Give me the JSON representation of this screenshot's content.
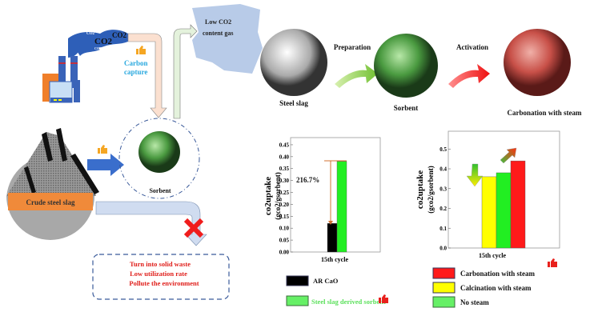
{
  "top_left": {
    "co2_labels": [
      "CO2",
      "CO2",
      "CO2",
      "CO2"
    ],
    "carbon_capture": [
      "Carbon",
      "capture"
    ],
    "low_co2_gas": [
      "Low CO2",
      "content gas"
    ]
  },
  "process": {
    "steel_slag": "Steel slag",
    "preparation": "Preparation",
    "sorbent": "Sorbent",
    "activation": "Activation",
    "carbonation": "Carbonation with steam"
  },
  "left": {
    "crude_steel_slag": "Crude steel slag",
    "sorbent": "Sorbent",
    "drawbacks": [
      "Turn into solid waste",
      "Low utilization rate",
      "Pollute the environment"
    ]
  },
  "colors": {
    "ar_cao": "#000000",
    "sorbent": "#22ee22",
    "carbonation": "#ff1a1a",
    "calcination": "#ffff00",
    "no_steam": "#22ee22",
    "carbon_capture_text": "#2aa9df",
    "drawback_text": "#e0201c"
  },
  "chart_data": [
    {
      "type": "bar",
      "ylabel": [
        "co2uptake",
        "(gco2/gsorbent)"
      ],
      "xlabel": "15th cycle",
      "ylim": [
        0,
        0.48
      ],
      "yticks": [
        "0.00",
        "0.05",
        "0.10",
        "0.15",
        "0.20",
        "0.25",
        "0.30",
        "0.35",
        "0.40",
        "0.45"
      ],
      "categories": [
        "15th cycle"
      ],
      "series": [
        {
          "name": "AR CaO",
          "values": [
            0.12
          ],
          "color": "#000000"
        },
        {
          "name": "Steel slag derived sorbent",
          "values": [
            0.38
          ],
          "color": "#22ee22"
        }
      ],
      "annotation": "216.7%",
      "grid": false
    },
    {
      "type": "bar",
      "ylabel": [
        "co2uptake",
        "(gco2/gsorbent)"
      ],
      "xlabel": "15th cycle",
      "ylim": [
        0,
        0.59
      ],
      "yticks": [
        "0.0",
        "0.1",
        "0.2",
        "0.3",
        "0.4",
        "0.5"
      ],
      "categories": [
        "15th cycle"
      ],
      "series": [
        {
          "name": "Calcination with steam",
          "values": [
            0.36
          ],
          "color": "#ffff00"
        },
        {
          "name": "No steam",
          "values": [
            0.38
          ],
          "color": "#22ee22"
        },
        {
          "name": "Carbonation with steam",
          "values": [
            0.44
          ],
          "color": "#ff1a1a"
        }
      ],
      "legend_order": [
        "Carbonation with steam",
        "Calcination with steam",
        "No steam"
      ],
      "grid": false
    }
  ]
}
